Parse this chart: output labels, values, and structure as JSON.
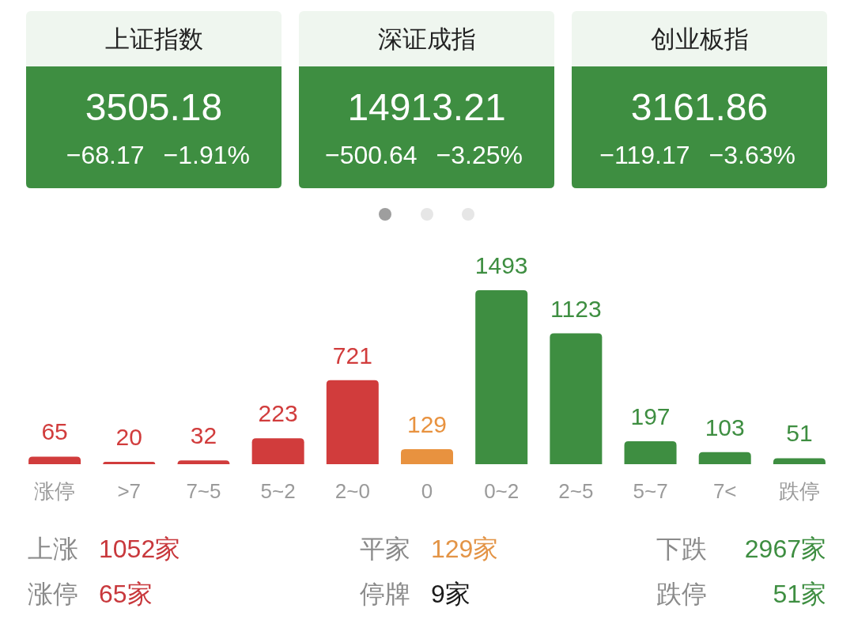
{
  "chart_data": [
    {
      "type": "other",
      "title": "上证指数",
      "annotations": [
        "3505.18",
        "−68.17",
        "−1.91%"
      ],
      "color": "#3e8e41"
    },
    {
      "type": "other",
      "title": "深证成指",
      "annotations": [
        "14913.21",
        "−500.64",
        "−3.25%"
      ],
      "color": "#3e8e41"
    },
    {
      "type": "other",
      "title": "创业板指",
      "annotations": [
        "3161.86",
        "−119.17",
        "−3.63%"
      ],
      "color": "#3e8e41"
    },
    {
      "type": "bar",
      "categories": [
        "涨停",
        ">7",
        "7~5",
        "5~2",
        "2~0",
        "0",
        "0~2",
        "2~5",
        "5~7",
        "7<",
        "跌停"
      ],
      "values": [
        65,
        20,
        32,
        223,
        721,
        129,
        1493,
        1123,
        197,
        103,
        51
      ],
      "colors": [
        "#d13c3c",
        "#d13c3c",
        "#d13c3c",
        "#d13c3c",
        "#d13c3c",
        "#e8923f",
        "#3e8e41",
        "#3e8e41",
        "#3e8e41",
        "#3e8e41",
        "#3e8e41"
      ],
      "data_labels": true
    },
    {
      "type": "other",
      "categories": [
        "上涨",
        "平家",
        "下跌",
        "涨停",
        "停牌",
        "跌停"
      ],
      "value_labels": [
        "1052家",
        "129家",
        "2967家",
        "65家",
        "9家",
        "51家"
      ],
      "colors": [
        "#c8383c",
        "#e39446",
        "#3e8e41",
        "#c8383c",
        "#1a1a1a",
        "#3e8e41"
      ]
    }
  ]
}
